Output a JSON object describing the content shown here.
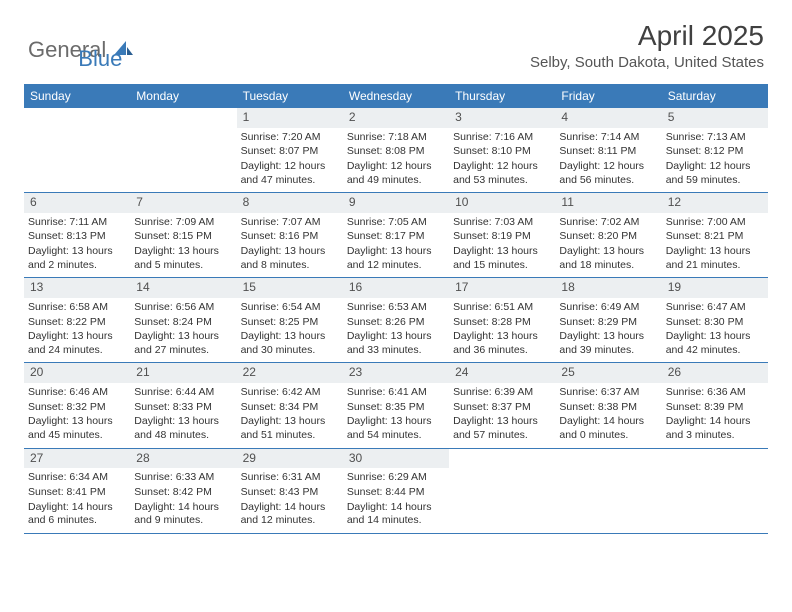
{
  "logo": {
    "general": "General",
    "blue": "Blue"
  },
  "title": "April 2025",
  "location": "Selby, South Dakota, United States",
  "colors": {
    "header_bg": "#3a7ab8",
    "header_fg": "#ffffff",
    "daynum_bg": "#eceff1",
    "text": "#333333"
  },
  "dayHeaders": [
    "Sunday",
    "Monday",
    "Tuesday",
    "Wednesday",
    "Thursday",
    "Friday",
    "Saturday"
  ],
  "weeks": [
    [
      {
        "n": "",
        "sunrise": "",
        "sunset": "",
        "daylight": ""
      },
      {
        "n": "",
        "sunrise": "",
        "sunset": "",
        "daylight": ""
      },
      {
        "n": "1",
        "sunrise": "Sunrise: 7:20 AM",
        "sunset": "Sunset: 8:07 PM",
        "daylight": "Daylight: 12 hours and 47 minutes."
      },
      {
        "n": "2",
        "sunrise": "Sunrise: 7:18 AM",
        "sunset": "Sunset: 8:08 PM",
        "daylight": "Daylight: 12 hours and 49 minutes."
      },
      {
        "n": "3",
        "sunrise": "Sunrise: 7:16 AM",
        "sunset": "Sunset: 8:10 PM",
        "daylight": "Daylight: 12 hours and 53 minutes."
      },
      {
        "n": "4",
        "sunrise": "Sunrise: 7:14 AM",
        "sunset": "Sunset: 8:11 PM",
        "daylight": "Daylight: 12 hours and 56 minutes."
      },
      {
        "n": "5",
        "sunrise": "Sunrise: 7:13 AM",
        "sunset": "Sunset: 8:12 PM",
        "daylight": "Daylight: 12 hours and 59 minutes."
      }
    ],
    [
      {
        "n": "6",
        "sunrise": "Sunrise: 7:11 AM",
        "sunset": "Sunset: 8:13 PM",
        "daylight": "Daylight: 13 hours and 2 minutes."
      },
      {
        "n": "7",
        "sunrise": "Sunrise: 7:09 AM",
        "sunset": "Sunset: 8:15 PM",
        "daylight": "Daylight: 13 hours and 5 minutes."
      },
      {
        "n": "8",
        "sunrise": "Sunrise: 7:07 AM",
        "sunset": "Sunset: 8:16 PM",
        "daylight": "Daylight: 13 hours and 8 minutes."
      },
      {
        "n": "9",
        "sunrise": "Sunrise: 7:05 AM",
        "sunset": "Sunset: 8:17 PM",
        "daylight": "Daylight: 13 hours and 12 minutes."
      },
      {
        "n": "10",
        "sunrise": "Sunrise: 7:03 AM",
        "sunset": "Sunset: 8:19 PM",
        "daylight": "Daylight: 13 hours and 15 minutes."
      },
      {
        "n": "11",
        "sunrise": "Sunrise: 7:02 AM",
        "sunset": "Sunset: 8:20 PM",
        "daylight": "Daylight: 13 hours and 18 minutes."
      },
      {
        "n": "12",
        "sunrise": "Sunrise: 7:00 AM",
        "sunset": "Sunset: 8:21 PM",
        "daylight": "Daylight: 13 hours and 21 minutes."
      }
    ],
    [
      {
        "n": "13",
        "sunrise": "Sunrise: 6:58 AM",
        "sunset": "Sunset: 8:22 PM",
        "daylight": "Daylight: 13 hours and 24 minutes."
      },
      {
        "n": "14",
        "sunrise": "Sunrise: 6:56 AM",
        "sunset": "Sunset: 8:24 PM",
        "daylight": "Daylight: 13 hours and 27 minutes."
      },
      {
        "n": "15",
        "sunrise": "Sunrise: 6:54 AM",
        "sunset": "Sunset: 8:25 PM",
        "daylight": "Daylight: 13 hours and 30 minutes."
      },
      {
        "n": "16",
        "sunrise": "Sunrise: 6:53 AM",
        "sunset": "Sunset: 8:26 PM",
        "daylight": "Daylight: 13 hours and 33 minutes."
      },
      {
        "n": "17",
        "sunrise": "Sunrise: 6:51 AM",
        "sunset": "Sunset: 8:28 PM",
        "daylight": "Daylight: 13 hours and 36 minutes."
      },
      {
        "n": "18",
        "sunrise": "Sunrise: 6:49 AM",
        "sunset": "Sunset: 8:29 PM",
        "daylight": "Daylight: 13 hours and 39 minutes."
      },
      {
        "n": "19",
        "sunrise": "Sunrise: 6:47 AM",
        "sunset": "Sunset: 8:30 PM",
        "daylight": "Daylight: 13 hours and 42 minutes."
      }
    ],
    [
      {
        "n": "20",
        "sunrise": "Sunrise: 6:46 AM",
        "sunset": "Sunset: 8:32 PM",
        "daylight": "Daylight: 13 hours and 45 minutes."
      },
      {
        "n": "21",
        "sunrise": "Sunrise: 6:44 AM",
        "sunset": "Sunset: 8:33 PM",
        "daylight": "Daylight: 13 hours and 48 minutes."
      },
      {
        "n": "22",
        "sunrise": "Sunrise: 6:42 AM",
        "sunset": "Sunset: 8:34 PM",
        "daylight": "Daylight: 13 hours and 51 minutes."
      },
      {
        "n": "23",
        "sunrise": "Sunrise: 6:41 AM",
        "sunset": "Sunset: 8:35 PM",
        "daylight": "Daylight: 13 hours and 54 minutes."
      },
      {
        "n": "24",
        "sunrise": "Sunrise: 6:39 AM",
        "sunset": "Sunset: 8:37 PM",
        "daylight": "Daylight: 13 hours and 57 minutes."
      },
      {
        "n": "25",
        "sunrise": "Sunrise: 6:37 AM",
        "sunset": "Sunset: 8:38 PM",
        "daylight": "Daylight: 14 hours and 0 minutes."
      },
      {
        "n": "26",
        "sunrise": "Sunrise: 6:36 AM",
        "sunset": "Sunset: 8:39 PM",
        "daylight": "Daylight: 14 hours and 3 minutes."
      }
    ],
    [
      {
        "n": "27",
        "sunrise": "Sunrise: 6:34 AM",
        "sunset": "Sunset: 8:41 PM",
        "daylight": "Daylight: 14 hours and 6 minutes."
      },
      {
        "n": "28",
        "sunrise": "Sunrise: 6:33 AM",
        "sunset": "Sunset: 8:42 PM",
        "daylight": "Daylight: 14 hours and 9 minutes."
      },
      {
        "n": "29",
        "sunrise": "Sunrise: 6:31 AM",
        "sunset": "Sunset: 8:43 PM",
        "daylight": "Daylight: 14 hours and 12 minutes."
      },
      {
        "n": "30",
        "sunrise": "Sunrise: 6:29 AM",
        "sunset": "Sunset: 8:44 PM",
        "daylight": "Daylight: 14 hours and 14 minutes."
      },
      {
        "n": "",
        "sunrise": "",
        "sunset": "",
        "daylight": ""
      },
      {
        "n": "",
        "sunrise": "",
        "sunset": "",
        "daylight": ""
      },
      {
        "n": "",
        "sunrise": "",
        "sunset": "",
        "daylight": ""
      }
    ]
  ]
}
